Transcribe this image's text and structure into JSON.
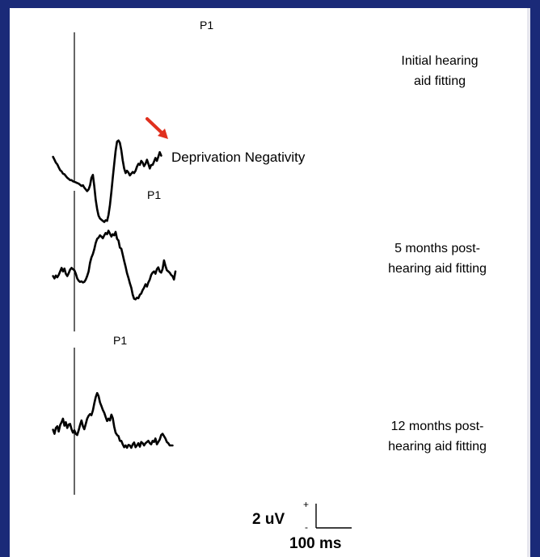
{
  "theme": {
    "background": "#1a2a78",
    "panel": "#ffffff",
    "trace": "#000000",
    "arrow": "#e0301e"
  },
  "chart_data": {
    "type": "line",
    "units": {
      "amplitude": "uV",
      "time": "ms"
    },
    "panels": [
      {
        "label_lines": [
          "Initial hearing",
          "aid fitting"
        ],
        "peak_label": "P1",
        "annotation": "Deprivation Negativity",
        "annotation_arrow_color": "#e0301e",
        "points": [
          [
            -60,
            -68
          ],
          [
            -56,
            -73
          ],
          [
            -52,
            -78
          ],
          [
            -48,
            -81
          ],
          [
            -44,
            -86
          ],
          [
            -40,
            -91
          ],
          [
            -36,
            -93
          ],
          [
            -32,
            -97
          ],
          [
            -28,
            -98
          ],
          [
            -24,
            -101
          ],
          [
            -20,
            -104
          ],
          [
            -16,
            -106
          ],
          [
            -12,
            -108
          ],
          [
            -8,
            -108
          ],
          [
            -4,
            -110
          ],
          [
            0,
            -111
          ],
          [
            4,
            -112
          ],
          [
            8,
            -113
          ],
          [
            12,
            -114
          ],
          [
            16,
            -116
          ],
          [
            20,
            -118
          ],
          [
            24,
            -117
          ],
          [
            28,
            -121
          ],
          [
            32,
            -124
          ],
          [
            36,
            -127
          ],
          [
            40,
            -124
          ],
          [
            44,
            -117
          ],
          [
            48,
            -104
          ],
          [
            52,
            -99
          ],
          [
            56,
            -118
          ],
          [
            60,
            -142
          ],
          [
            64,
            -158
          ],
          [
            68,
            -169
          ],
          [
            72,
            -174
          ],
          [
            76,
            -176
          ],
          [
            80,
            -178
          ],
          [
            84,
            -180
          ],
          [
            88,
            -177
          ],
          [
            92,
            -178
          ],
          [
            96,
            -168
          ],
          [
            100,
            -151
          ],
          [
            104,
            -128
          ],
          [
            108,
            -104
          ],
          [
            112,
            -80
          ],
          [
            116,
            -58
          ],
          [
            120,
            -42
          ],
          [
            124,
            -40
          ],
          [
            128,
            -44
          ],
          [
            132,
            -57
          ],
          [
            136,
            -74
          ],
          [
            140,
            -88
          ],
          [
            144,
            -96
          ],
          [
            148,
            -92
          ],
          [
            152,
            -95
          ],
          [
            156,
            -100
          ],
          [
            160,
            -97
          ],
          [
            164,
            -94
          ],
          [
            168,
            -96
          ],
          [
            172,
            -92
          ],
          [
            176,
            -85
          ],
          [
            180,
            -80
          ],
          [
            184,
            -82
          ],
          [
            188,
            -75
          ],
          [
            192,
            -78
          ],
          [
            196,
            -84
          ],
          [
            200,
            -80
          ],
          [
            204,
            -73
          ],
          [
            208,
            -80
          ],
          [
            212,
            -88
          ],
          [
            216,
            -82
          ],
          [
            220,
            -82
          ],
          [
            224,
            -76
          ],
          [
            228,
            -70
          ],
          [
            232,
            -75
          ],
          [
            236,
            -68
          ],
          [
            240,
            -60
          ],
          [
            244,
            -66
          ]
        ]
      },
      {
        "label_lines": [
          "5 months post-",
          "hearing aid fitting"
        ],
        "peak_label": "P1",
        "points": [
          [
            -60,
            -16
          ],
          [
            -56,
            -20
          ],
          [
            -52,
            -15
          ],
          [
            -48,
            -18
          ],
          [
            -44,
            -14
          ],
          [
            -40,
            -8
          ],
          [
            -36,
            -2
          ],
          [
            -32,
            -8
          ],
          [
            -28,
            -3
          ],
          [
            -24,
            -12
          ],
          [
            -20,
            -16
          ],
          [
            -16,
            -11
          ],
          [
            -12,
            -5
          ],
          [
            -8,
            -2
          ],
          [
            -4,
            -4
          ],
          [
            0,
            -6
          ],
          [
            4,
            -12
          ],
          [
            8,
            -20
          ],
          [
            12,
            -24
          ],
          [
            16,
            -26
          ],
          [
            20,
            -25
          ],
          [
            24,
            -27
          ],
          [
            28,
            -26
          ],
          [
            32,
            -22
          ],
          [
            36,
            -16
          ],
          [
            40,
            -8
          ],
          [
            44,
            7
          ],
          [
            48,
            16
          ],
          [
            52,
            22
          ],
          [
            56,
            30
          ],
          [
            60,
            41
          ],
          [
            64,
            48
          ],
          [
            68,
            50
          ],
          [
            72,
            54
          ],
          [
            76,
            52
          ],
          [
            80,
            49
          ],
          [
            84,
            54
          ],
          [
            88,
            58
          ],
          [
            92,
            56
          ],
          [
            96,
            62
          ],
          [
            100,
            57
          ],
          [
            104,
            52
          ],
          [
            108,
            56
          ],
          [
            112,
            54
          ],
          [
            116,
            60
          ],
          [
            120,
            48
          ],
          [
            124,
            45
          ],
          [
            128,
            33
          ],
          [
            132,
            31
          ],
          [
            136,
            21
          ],
          [
            140,
            10
          ],
          [
            144,
            0
          ],
          [
            148,
            -11
          ],
          [
            152,
            -19
          ],
          [
            156,
            -28
          ],
          [
            160,
            -36
          ],
          [
            164,
            -48
          ],
          [
            168,
            -55
          ],
          [
            172,
            -56
          ],
          [
            176,
            -53
          ],
          [
            180,
            -54
          ],
          [
            184,
            -48
          ],
          [
            188,
            -46
          ],
          [
            192,
            -40
          ],
          [
            196,
            -36
          ],
          [
            200,
            -30
          ],
          [
            204,
            -34
          ],
          [
            208,
            -27
          ],
          [
            212,
            -22
          ],
          [
            216,
            -14
          ],
          [
            220,
            -10
          ],
          [
            224,
            -8
          ],
          [
            228,
            -12
          ],
          [
            232,
            -4
          ],
          [
            236,
            -1
          ],
          [
            240,
            -8
          ],
          [
            244,
            -10
          ],
          [
            248,
            -4
          ],
          [
            252,
            11
          ],
          [
            256,
            2
          ],
          [
            260,
            -6
          ],
          [
            264,
            -8
          ],
          [
            268,
            -10
          ],
          [
            272,
            -14
          ],
          [
            276,
            -16
          ],
          [
            280,
            -22
          ],
          [
            284,
            -8
          ]
        ]
      },
      {
        "label_lines": [
          "12 months post-",
          "hearing aid fitting"
        ],
        "peak_label": "P1",
        "points": [
          [
            -60,
            -5
          ],
          [
            -56,
            -12
          ],
          [
            -52,
            -2
          ],
          [
            -48,
            1
          ],
          [
            -44,
            -8
          ],
          [
            -40,
            3
          ],
          [
            -36,
            8
          ],
          [
            -32,
            14
          ],
          [
            -28,
            2
          ],
          [
            -24,
            8
          ],
          [
            -20,
            -2
          ],
          [
            -16,
            4
          ],
          [
            -12,
            5
          ],
          [
            -8,
            -4
          ],
          [
            -4,
            -10
          ],
          [
            0,
            -6
          ],
          [
            4,
            -12
          ],
          [
            8,
            -14
          ],
          [
            12,
            -6
          ],
          [
            16,
            3
          ],
          [
            20,
            11
          ],
          [
            24,
            1
          ],
          [
            28,
            -4
          ],
          [
            32,
            5
          ],
          [
            36,
            14
          ],
          [
            40,
            19
          ],
          [
            44,
            22
          ],
          [
            48,
            20
          ],
          [
            52,
            28
          ],
          [
            56,
            40
          ],
          [
            60,
            51
          ],
          [
            64,
            58
          ],
          [
            68,
            53
          ],
          [
            72,
            42
          ],
          [
            76,
            36
          ],
          [
            80,
            29
          ],
          [
            84,
            24
          ],
          [
            88,
            17
          ],
          [
            92,
            10
          ],
          [
            96,
            14
          ],
          [
            100,
            11
          ],
          [
            104,
            21
          ],
          [
            108,
            15
          ],
          [
            112,
            0
          ],
          [
            116,
            -10
          ],
          [
            120,
            -14
          ],
          [
            124,
            -16
          ],
          [
            128,
            -24
          ],
          [
            132,
            -24
          ],
          [
            136,
            -30
          ],
          [
            140,
            -35
          ],
          [
            144,
            -32
          ],
          [
            148,
            -36
          ],
          [
            152,
            -31
          ],
          [
            156,
            -32
          ],
          [
            160,
            -36
          ],
          [
            164,
            -30
          ],
          [
            168,
            -27
          ],
          [
            172,
            -35
          ],
          [
            176,
            -32
          ],
          [
            180,
            -28
          ],
          [
            184,
            -34
          ],
          [
            188,
            -26
          ],
          [
            192,
            -28
          ],
          [
            196,
            -32
          ],
          [
            200,
            -28
          ],
          [
            204,
            -26
          ],
          [
            208,
            -24
          ],
          [
            212,
            -28
          ],
          [
            216,
            -30
          ],
          [
            220,
            -24
          ],
          [
            224,
            -26
          ],
          [
            228,
            -20
          ],
          [
            232,
            -30
          ],
          [
            236,
            -26
          ],
          [
            240,
            -22
          ],
          [
            244,
            -14
          ],
          [
            248,
            -12
          ],
          [
            252,
            -16
          ],
          [
            256,
            -20
          ],
          [
            260,
            -26
          ],
          [
            264,
            -28
          ],
          [
            268,
            -32
          ],
          [
            272,
            -32
          ],
          [
            276,
            -32
          ]
        ]
      }
    ],
    "scale_bar": {
      "amplitude_label": "2 uV",
      "time_label": "100 ms",
      "plus": "+",
      "minus": "-"
    }
  }
}
